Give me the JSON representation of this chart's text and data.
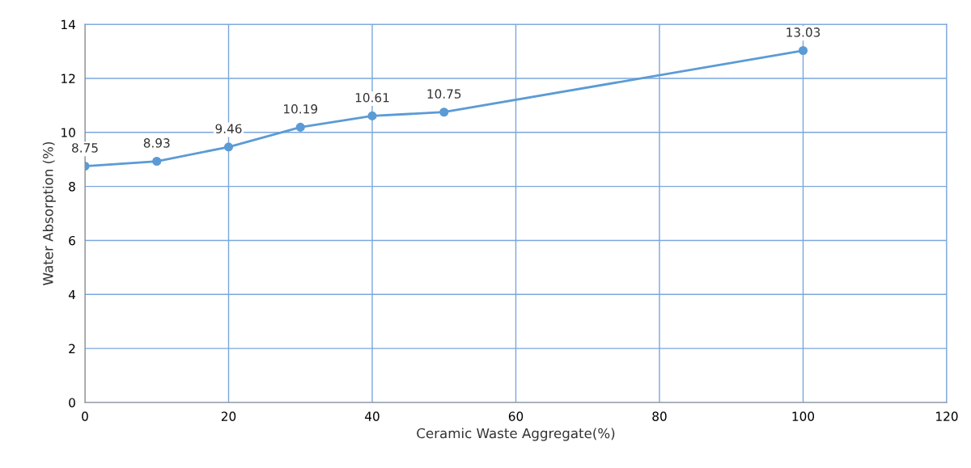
{
  "chart_data": {
    "type": "line",
    "xlabel": "Ceramic Waste Aggregate(%)",
    "ylabel": "Water Absorption (%)",
    "x": [
      0,
      10,
      20,
      30,
      40,
      50,
      100
    ],
    "series": [
      {
        "color": "#5b9bd5",
        "values": [
          8.75,
          8.93,
          9.46,
          10.19,
          10.61,
          10.75,
          13.03
        ]
      }
    ],
    "xlim": [
      0,
      120
    ],
    "xticks": [
      0,
      20,
      40,
      60,
      80,
      100,
      120
    ],
    "ylim": [
      0,
      14
    ],
    "yticks": [
      0,
      2,
      4,
      6,
      8,
      10,
      12,
      14
    ],
    "grid": true,
    "marker": "circle",
    "line_style": "solid",
    "data_labels": true,
    "legend": false
  }
}
